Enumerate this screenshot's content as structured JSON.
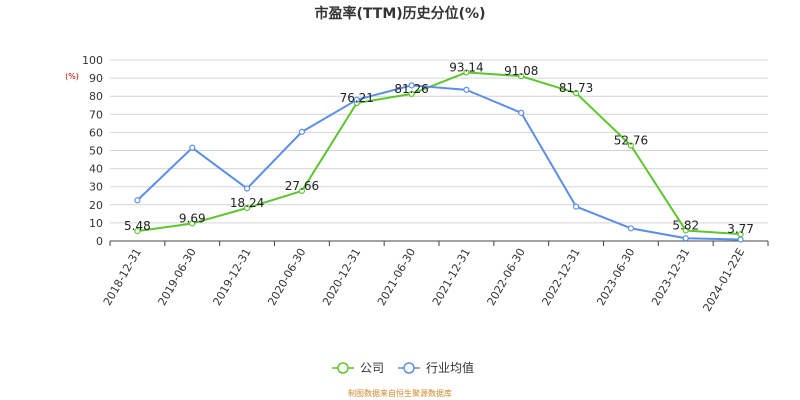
{
  "chart_data": {
    "type": "line",
    "title": "市盈率(TTM)历史分位(%)",
    "unit": "(%)",
    "categories": [
      "2018-12-31",
      "2019-06-30",
      "2019-12-31",
      "2020-06-30",
      "2020-12-31",
      "2021-06-30",
      "2021-12-31",
      "2022-06-30",
      "2022-12-31",
      "2023-06-30",
      "2023-12-31",
      "2024-01-22E"
    ],
    "ylim": [
      0,
      100
    ],
    "yticks": [
      0,
      10,
      20,
      30,
      40,
      50,
      60,
      70,
      80,
      90,
      100
    ],
    "grid": true,
    "legend_position": "bottom",
    "series": [
      {
        "name": "公司",
        "color": "#5cc52f",
        "values": [
          5.48,
          9.69,
          18.24,
          27.66,
          76.21,
          81.26,
          93.14,
          91.08,
          81.73,
          52.76,
          5.82,
          3.77
        ],
        "labels": [
          "5.48",
          "9.69",
          "18.24",
          "27.66",
          "76.21",
          "81.26",
          "93.14",
          "91.08",
          "81.73",
          "52.76",
          "5.82",
          "3.77"
        ]
      },
      {
        "name": "行业均值",
        "color": "#5b8ee6",
        "values": [
          22.5,
          51.5,
          29.0,
          60.3,
          78.0,
          86.0,
          83.5,
          70.8,
          19.0,
          7.0,
          1.5,
          0.8
        ]
      }
    ]
  },
  "footer": {
    "source": "制图数据来自恒生聚源数据库"
  }
}
